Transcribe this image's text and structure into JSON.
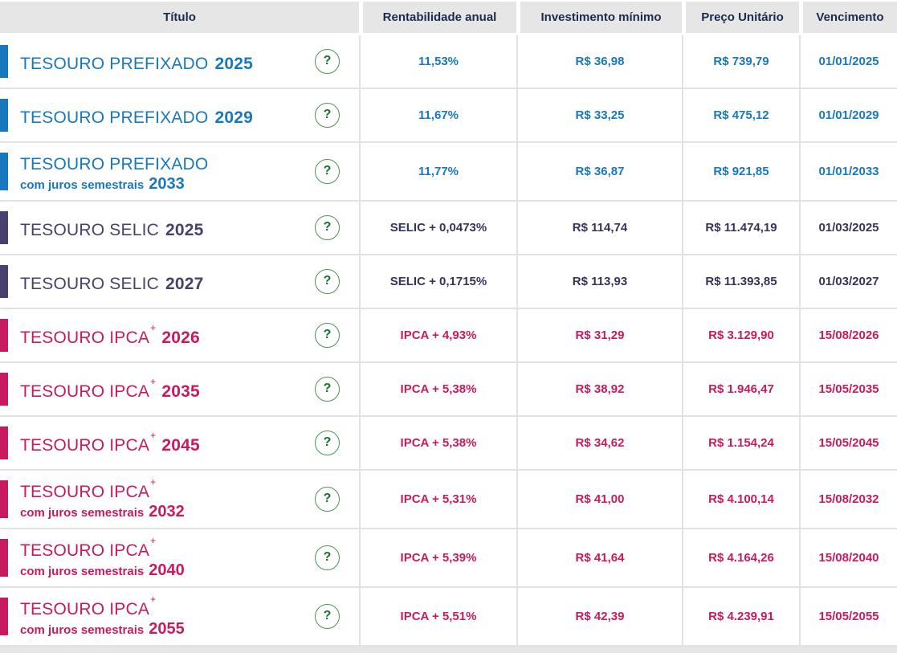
{
  "table": {
    "columns": [
      {
        "label": "Título"
      },
      {
        "label": "Rentabilidade anual"
      },
      {
        "label": "Investimento mínimo"
      },
      {
        "label": "Preço Unitário"
      },
      {
        "label": "Vencimento"
      }
    ],
    "help_icon": "?",
    "rows": [
      {
        "name": "TESOURO PREFIXADO",
        "sup": "",
        "subtitle": "",
        "year": "2025",
        "color": "#1878be",
        "value_color": "#1878be",
        "rate": "11,53%",
        "min_investment": "R$ 36,98",
        "unit_price": "R$ 739,79",
        "maturity": "01/01/2025"
      },
      {
        "name": "TESOURO PREFIXADO",
        "sup": "",
        "subtitle": "",
        "year": "2029",
        "color": "#1878be",
        "value_color": "#1878be",
        "rate": "11,67%",
        "min_investment": "R$ 33,25",
        "unit_price": "R$ 475,12",
        "maturity": "01/01/2029"
      },
      {
        "name": "TESOURO PREFIXADO",
        "sup": "",
        "subtitle": "com juros semestrais",
        "year": "2033",
        "color": "#1878be",
        "value_color": "#1878be",
        "rate": "11,77%",
        "min_investment": "R$ 36,87",
        "unit_price": "R$ 921,85",
        "maturity": "01/01/2033"
      },
      {
        "name": "TESOURO SELIC",
        "sup": "",
        "subtitle": "",
        "year": "2025",
        "color": "#494070",
        "value_color": "#35345a",
        "rate": "SELIC + 0,0473%",
        "min_investment": "R$ 114,74",
        "unit_price": "R$ 11.474,19",
        "maturity": "01/03/2025"
      },
      {
        "name": "TESOURO SELIC",
        "sup": "",
        "subtitle": "",
        "year": "2027",
        "color": "#494070",
        "value_color": "#35345a",
        "rate": "SELIC + 0,1715%",
        "min_investment": "R$ 113,93",
        "unit_price": "R$ 11.393,85",
        "maturity": "01/03/2027"
      },
      {
        "name": "TESOURO IPCA",
        "sup": "+",
        "subtitle": "",
        "year": "2026",
        "color": "#c81a5f",
        "value_color": "#c81a5f",
        "rate": "IPCA + 4,93%",
        "min_investment": "R$ 31,29",
        "unit_price": "R$ 3.129,90",
        "maturity": "15/08/2026"
      },
      {
        "name": "TESOURO IPCA",
        "sup": "+",
        "subtitle": "",
        "year": "2035",
        "color": "#c81a5f",
        "value_color": "#c81a5f",
        "rate": "IPCA + 5,38%",
        "min_investment": "R$ 38,92",
        "unit_price": "R$ 1.946,47",
        "maturity": "15/05/2035"
      },
      {
        "name": "TESOURO IPCA",
        "sup": "+",
        "subtitle": "",
        "year": "2045",
        "color": "#c81a5f",
        "value_color": "#c81a5f",
        "rate": "IPCA + 5,38%",
        "min_investment": "R$ 34,62",
        "unit_price": "R$ 1.154,24",
        "maturity": "15/05/2045"
      },
      {
        "name": "TESOURO IPCA",
        "sup": "+",
        "subtitle": "com juros semestrais",
        "year": "2032",
        "color": "#c81a5f",
        "value_color": "#c81a5f",
        "rate": "IPCA + 5,31%",
        "min_investment": "R$ 41,00",
        "unit_price": "R$ 4.100,14",
        "maturity": "15/08/2032"
      },
      {
        "name": "TESOURO IPCA",
        "sup": "+",
        "subtitle": "com juros semestrais",
        "year": "2040",
        "color": "#c81a5f",
        "value_color": "#c81a5f",
        "rate": "IPCA + 5,39%",
        "min_investment": "R$ 41,64",
        "unit_price": "R$ 4.164,26",
        "maturity": "15/08/2040"
      },
      {
        "name": "TESOURO IPCA",
        "sup": "+",
        "subtitle": "com juros semestrais",
        "year": "2055",
        "color": "#c81a5f",
        "value_color": "#c81a5f",
        "rate": "IPCA + 5,51%",
        "min_investment": "R$ 42,39",
        "unit_price": "R$ 4.239,91",
        "maturity": "15/05/2055"
      }
    ]
  }
}
